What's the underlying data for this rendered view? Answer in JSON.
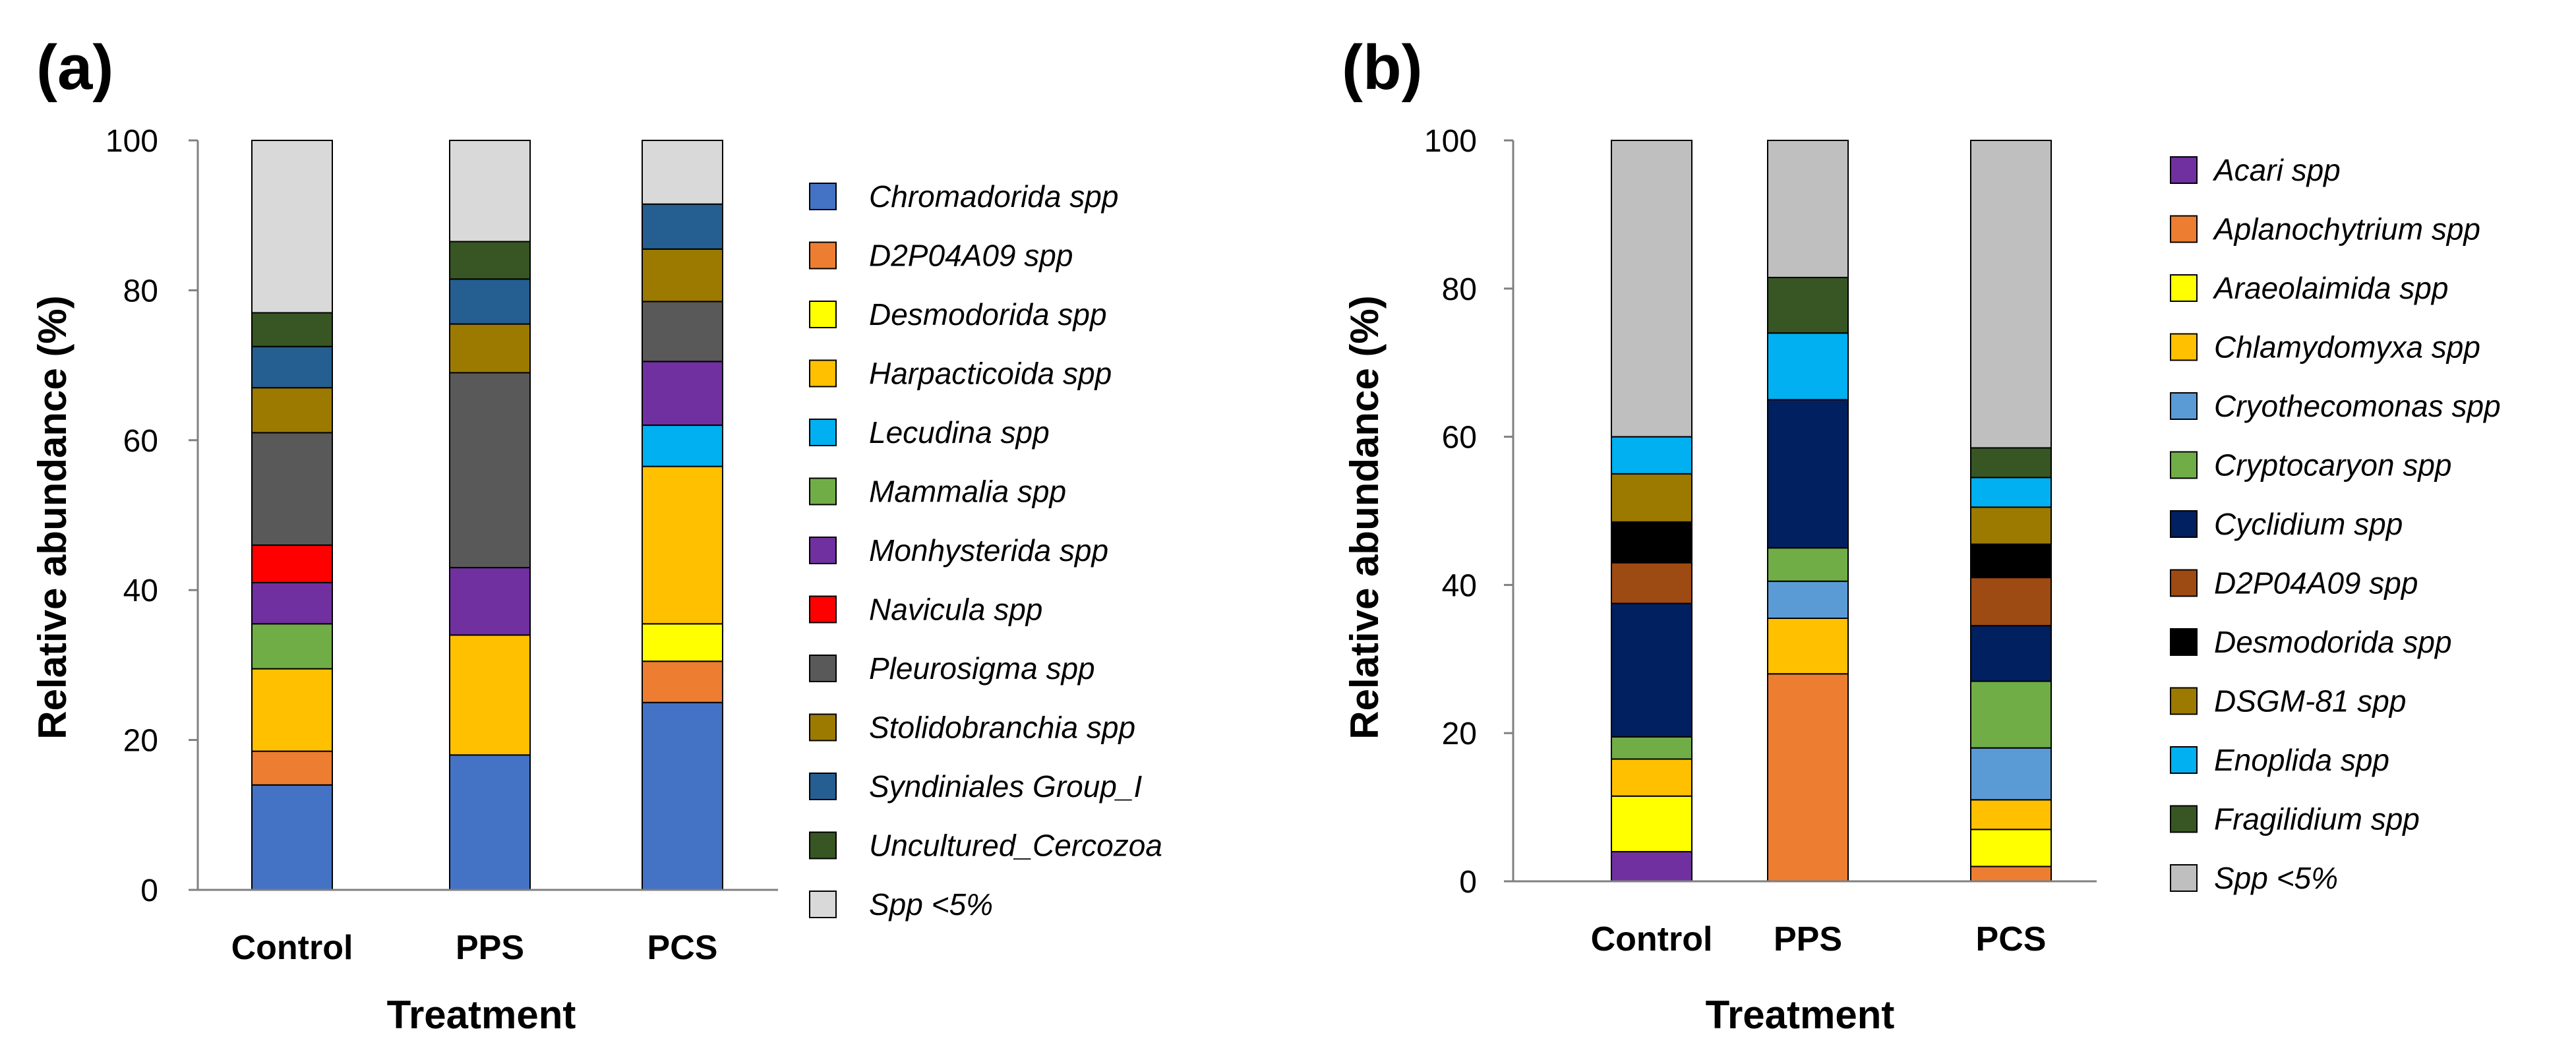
{
  "chart_data": [
    {
      "panel_label": "(a)",
      "type": "bar",
      "stacked": true,
      "categories": [
        "Control",
        "PPS",
        "PCS"
      ],
      "xlabel": "Treatment",
      "ylabel": "Relative abundance (%)",
      "ylim": [
        0,
        100
      ],
      "yticks": [
        "0",
        "20",
        "40",
        "60",
        "80",
        "100"
      ],
      "legend_position": "right",
      "series": [
        {
          "name": "Chromadorida spp",
          "color": "#4472C4",
          "values": [
            14,
            18,
            25
          ]
        },
        {
          "name": "D2P04A09 spp",
          "color": "#ED7D31",
          "values": [
            4.5,
            0,
            5.5
          ]
        },
        {
          "name": "Desmodorida spp",
          "color": "#FFFF00",
          "values": [
            0,
            0,
            5
          ]
        },
        {
          "name": "Harpacticoida spp",
          "color": "#FFC000",
          "values": [
            11,
            16,
            21
          ]
        },
        {
          "name": "Lecudina spp",
          "color": "#00B0F0",
          "values": [
            0,
            0,
            5.5
          ]
        },
        {
          "name": "Mammalia spp",
          "color": "#70AD47",
          "values": [
            6,
            0,
            0
          ]
        },
        {
          "name": "Monhysterida spp",
          "color": "#7030A0",
          "values": [
            5.5,
            9,
            8.5
          ]
        },
        {
          "name": "Navicula spp",
          "color": "#FF0000",
          "values": [
            5,
            0,
            0
          ]
        },
        {
          "name": "Pleurosigma spp",
          "color": "#595959",
          "values": [
            15,
            26,
            8
          ]
        },
        {
          "name": "Stolidobranchia spp",
          "color": "#9C7A00",
          "values": [
            6,
            6.5,
            7
          ]
        },
        {
          "name": "Syndiniales Group_I",
          "color": "#255E91",
          "values": [
            5.5,
            6,
            6
          ]
        },
        {
          "name": "Uncultured_Cercozoa",
          "color": "#375623",
          "values": [
            4.5,
            5,
            0
          ]
        },
        {
          "name": "Spp <5%",
          "color": "#D9D9D9",
          "values": [
            23,
            13.5,
            8.5
          ]
        }
      ]
    },
    {
      "panel_label": "(b)",
      "type": "bar",
      "stacked": true,
      "categories": [
        "Control",
        "PPS",
        "PCS"
      ],
      "xlabel": "Treatment",
      "ylabel": "Relative abundance (%)",
      "ylim": [
        0,
        100
      ],
      "yticks": [
        "0",
        "20",
        "40",
        "60",
        "80",
        "100"
      ],
      "legend_position": "right",
      "series": [
        {
          "name": "Acari spp",
          "color": "#7030A0",
          "values": [
            4,
            0,
            0
          ]
        },
        {
          "name": "Aplanochytrium spp",
          "color": "#ED7D31",
          "values": [
            0,
            28,
            2
          ]
        },
        {
          "name": "Araeolaimida spp",
          "color": "#FFFF00",
          "values": [
            7.5,
            0,
            5
          ]
        },
        {
          "name": "Chlamydomyxa spp",
          "color": "#FFC000",
          "values": [
            5,
            7.5,
            4
          ]
        },
        {
          "name": "Cryothecomonas spp",
          "color": "#5B9BD5",
          "values": [
            0,
            5,
            7
          ]
        },
        {
          "name": "Cryptocaryon spp",
          "color": "#70AD47",
          "values": [
            3,
            4.5,
            9
          ]
        },
        {
          "name": "Cyclidium spp",
          "color": "#002060",
          "values": [
            18,
            20,
            7.5
          ]
        },
        {
          "name": "D2P04A09 spp",
          "color": "#9E4A13",
          "values": [
            5.5,
            0,
            6.5
          ]
        },
        {
          "name": "Desmodorida spp",
          "color": "#000000",
          "values": [
            5.5,
            0,
            4.5
          ]
        },
        {
          "name": "DSGM-81 spp",
          "color": "#9C7A00",
          "values": [
            6.5,
            0,
            5
          ]
        },
        {
          "name": "Enoplida spp",
          "color": "#00B0F0",
          "values": [
            5,
            9,
            4
          ]
        },
        {
          "name": "Fragilidium spp",
          "color": "#375623",
          "values": [
            0,
            7.5,
            4
          ]
        },
        {
          "name": "Spp <5%",
          "color": "#BFBFBF",
          "values": [
            40,
            18.5,
            41.5
          ]
        }
      ]
    }
  ]
}
